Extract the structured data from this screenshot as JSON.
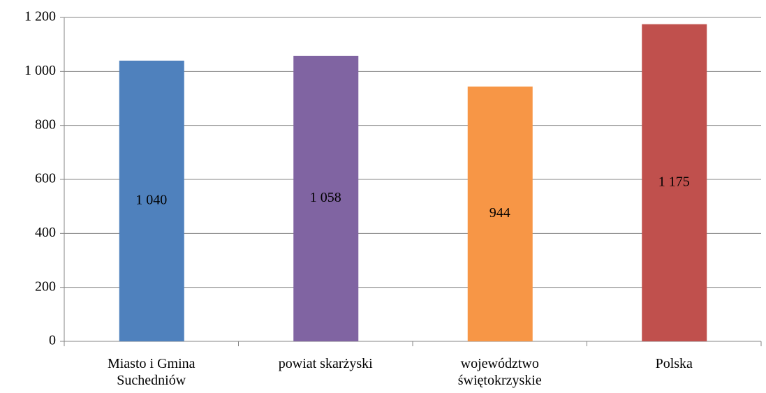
{
  "chart_data": {
    "type": "bar",
    "categories": [
      "Miasto i Gmina Suchedniów",
      "powiat skarżyski",
      "województwo świętokrzyskie",
      "Polska"
    ],
    "values": [
      1040,
      1058,
      944,
      1175
    ],
    "value_labels": [
      "1 040",
      "1 058",
      "944",
      "1 175"
    ],
    "colors": [
      "#4f81bd",
      "#8064a2",
      "#f79646",
      "#c0504d"
    ],
    "ylim": [
      0,
      1200
    ],
    "yticks": [
      0,
      200,
      400,
      600,
      800,
      {
        "value": 1000,
        "label": "1 000"
      },
      {
        "value": 1200,
        "label": "1 200"
      }
    ],
    "grid": true
  }
}
